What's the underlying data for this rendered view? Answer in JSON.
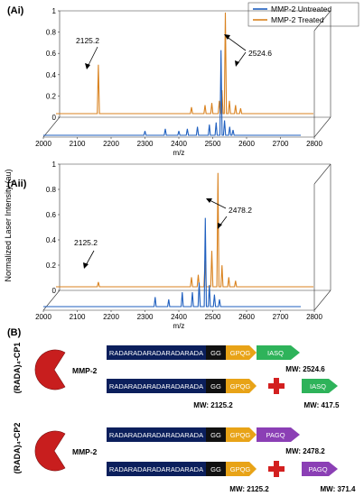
{
  "panel_labels": {
    "ai": "(Ai)",
    "aii": "(Aii)",
    "b": "(B)"
  },
  "legend": {
    "untreated": "MMP-2 Untreated",
    "treated": "MMP-2 Treated"
  },
  "colors": {
    "untreated": "#1f5fbf",
    "treated": "#d9821f",
    "navy": "#0b1f5c",
    "black": "#111111",
    "gpqg": "#e8a317",
    "iasq": "#2eb35a",
    "pagq": "#8b3fb5",
    "red": "#d32020",
    "pacman": "#c81e1e"
  },
  "chart_data": [
    {
      "type": "line",
      "title": "(Ai)",
      "xlabel": "m/z",
      "ylabel": "Normalized Laser Intensity (au)",
      "xlim": [
        2000,
        2800
      ],
      "ylim": [
        0,
        1
      ],
      "xticks": [
        "2000",
        "2100",
        "2200",
        "2300",
        "2400",
        "2500",
        "2600",
        "2700",
        "2800"
      ],
      "yticks": [
        "0",
        "0.2",
        "0.4",
        "0.6",
        "0.8",
        "1"
      ],
      "series": [
        {
          "name": "MMP-2 Untreated",
          "peaks": [
            [
              2300,
              0.04
            ],
            [
              2360,
              0.06
            ],
            [
              2400,
              0.04
            ],
            [
              2425,
              0.06
            ],
            [
              2455,
              0.08
            ],
            [
              2490,
              0.1
            ],
            [
              2510,
              0.12
            ],
            [
              2524.6,
              0.8
            ],
            [
              2535,
              0.14
            ],
            [
              2550,
              0.08
            ],
            [
              2560,
              0.05
            ]
          ]
        },
        {
          "name": "MMP-2 Treated",
          "peaks": [
            [
              2125.2,
              0.46
            ],
            [
              2400,
              0.06
            ],
            [
              2440,
              0.08
            ],
            [
              2460,
              0.1
            ],
            [
              2482,
              0.12
            ],
            [
              2490,
              0.22
            ],
            [
              2500,
              0.95
            ],
            [
              2512,
              0.12
            ],
            [
              2530,
              0.08
            ],
            [
              2545,
              0.05
            ]
          ]
        }
      ],
      "annotations": [
        "2125.2",
        "2524.6"
      ]
    },
    {
      "type": "line",
      "title": "(Aii)",
      "xlabel": "m/z",
      "ylabel": "Normalized Laser Intensity (au)",
      "xlim": [
        2000,
        2800
      ],
      "ylim": [
        0,
        1
      ],
      "xticks": [
        "2000",
        "2100",
        "2200",
        "2300",
        "2400",
        "2500",
        "2600",
        "2700",
        "2800"
      ],
      "yticks": [
        "0",
        "0.2",
        "0.4",
        "0.6",
        "0.8",
        "1"
      ],
      "series": [
        {
          "name": "MMP-2 Untreated",
          "peaks": [
            [
              2330,
              0.08
            ],
            [
              2370,
              0.06
            ],
            [
              2410,
              0.12
            ],
            [
              2440,
              0.12
            ],
            [
              2460,
              0.2
            ],
            [
              2478.2,
              0.74
            ],
            [
              2490,
              0.18
            ],
            [
              2505,
              0.1
            ],
            [
              2520,
              0.06
            ]
          ]
        },
        {
          "name": "MMP-2 Treated",
          "peaks": [
            [
              2125.2,
              0.04
            ],
            [
              2400,
              0.08
            ],
            [
              2420,
              0.1
            ],
            [
              2440,
              0.22
            ],
            [
              2460,
              0.3
            ],
            [
              2478,
              0.95
            ],
            [
              2490,
              0.18
            ],
            [
              2510,
              0.08
            ],
            [
              2530,
              0.05
            ]
          ]
        }
      ],
      "annotations": [
        "2125.2",
        "2478.2"
      ]
    }
  ],
  "panel_b": {
    "row1_label": "(RADA)₄-CP1",
    "row2_label": "(RADA)₄-CP2",
    "mmp": "MMP-2",
    "seq": "RADARADARADARADARADA",
    "gg": "GG",
    "gpqg": "GPQG",
    "iasq": "IASQ",
    "pagq": "PAGQ",
    "mw_cp1_full": "MW: 2524.6",
    "mw_cp1_frag1": "MW: 2125.2",
    "mw_cp1_frag2": "MW: 417.5",
    "mw_cp2_full": "MW: 2478.2",
    "mw_cp2_frag1": "MW: 2125.2",
    "mw_cp2_frag2": "MW: 371.4"
  }
}
